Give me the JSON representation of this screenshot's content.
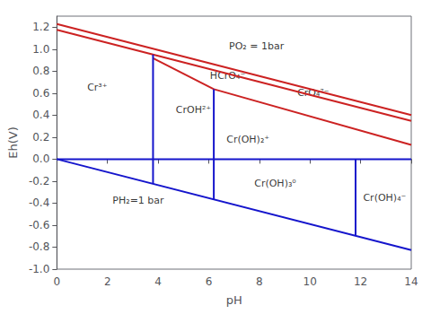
{
  "chart_data": {
    "type": "line",
    "xlabel": "pH",
    "ylabel": "Eh(V)",
    "xlim": [
      0,
      14
    ],
    "ylim": [
      -1.0,
      1.3
    ],
    "xticks": [
      0,
      2,
      4,
      6,
      8,
      10,
      12,
      14
    ],
    "yticks": [
      {
        "value": -1.0,
        "label": "-1.0"
      },
      -0.8,
      -0.6,
      -0.4,
      -0.2,
      {
        "value": 0.0,
        "label": "0.0"
      },
      0.2,
      0.4,
      0.6,
      0.8,
      {
        "value": 1.0,
        "label": "1.0"
      },
      1.2
    ],
    "grid": false,
    "series": [
      {
        "x": [
          0.0,
          14.0
        ],
        "values": [
          1.228,
          0.4006
        ],
        "color": "#cc2222"
      },
      {
        "x": [
          0.0,
          14.0
        ],
        "values": [
          1.175,
          0.3476
        ],
        "color": "#cc2222"
      },
      {
        "x": [
          0.0,
          14.0
        ],
        "values": [
          0.0,
          -0.8274
        ],
        "color": "#1515cc"
      },
      {
        "x": [
          0.0,
          14.0
        ],
        "values": [
          0.0,
          0.0
        ],
        "color": "#1515cc"
      },
      {
        "x": [
          3.8,
          6.2
        ],
        "values": [
          0.917,
          0.636
        ],
        "color": "#cc2222"
      },
      {
        "x": [
          6.2,
          14
        ],
        "values": [
          0.636,
          0.13
        ],
        "color": "#cc2222"
      },
      {
        "x": [
          3.8,
          3.8
        ],
        "values": [
          -0.22458,
          0.95042
        ],
        "color": "#1515cc"
      },
      {
        "x": [
          6.2,
          6.2
        ],
        "values": [
          -0.36642,
          0.636
        ],
        "color": "#1515cc"
      },
      {
        "x": [
          11.8,
          11.8
        ],
        "values": [
          -0.69738,
          0.0
        ],
        "color": "#1515cc"
      }
    ],
    "annotations": [
      {
        "text": "Cr³⁺",
        "x": 1.2,
        "y": 0.65
      },
      {
        "text": "CrOH²⁺",
        "x": 4.7,
        "y": 0.45
      },
      {
        "text": "HCrO₄⁻",
        "x": 6.05,
        "y": 0.755
      },
      {
        "text": "CrO₄²⁻",
        "x": 9.5,
        "y": 0.6
      },
      {
        "text": "Cr(OH)₂⁺",
        "x": 6.7,
        "y": 0.18
      },
      {
        "text": "Cr(OH)₃⁰",
        "x": 7.8,
        "y": -0.22
      },
      {
        "text": "Cr(OH)₄⁻",
        "x": 12.1,
        "y": -0.35
      },
      {
        "text": "PO₂ = 1bar",
        "x": 6.8,
        "y": 1.03
      },
      {
        "text": "PH₂=1 bar",
        "x": 2.2,
        "y": -0.38
      }
    ]
  }
}
